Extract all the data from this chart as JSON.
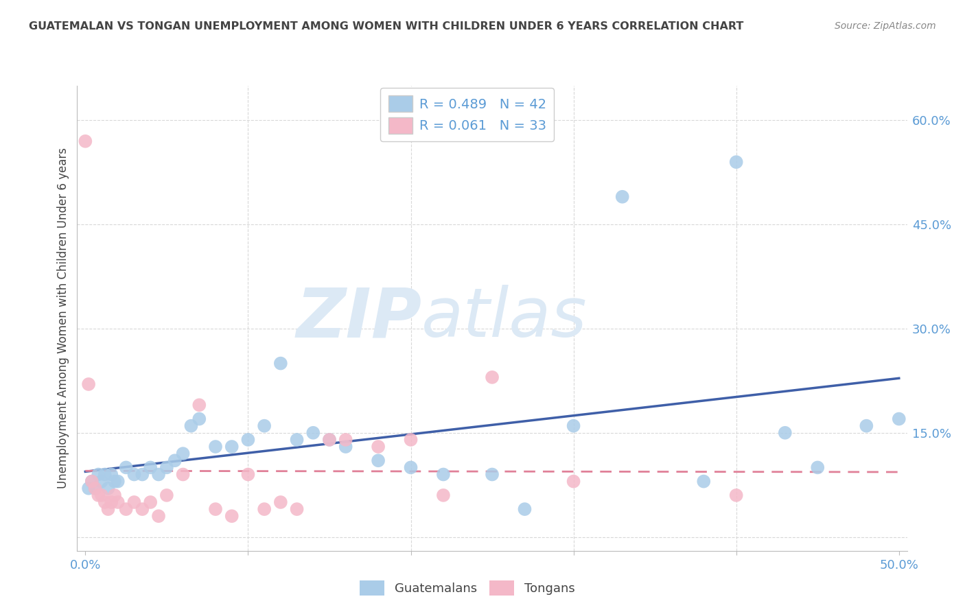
{
  "title": "GUATEMALAN VS TONGAN UNEMPLOYMENT AMONG WOMEN WITH CHILDREN UNDER 6 YEARS CORRELATION CHART",
  "source": "Source: ZipAtlas.com",
  "ylabel": "Unemployment Among Women with Children Under 6 years",
  "xlabel": "",
  "xlim": [
    -0.005,
    0.505
  ],
  "ylim": [
    -0.02,
    0.65
  ],
  "xticks": [
    0.0,
    0.1,
    0.2,
    0.3,
    0.4,
    0.5
  ],
  "yticks_right": [
    0.0,
    0.15,
    0.3,
    0.45,
    0.6
  ],
  "ytick_labels_right": [
    "",
    "15.0%",
    "30.0%",
    "45.0%",
    "60.0%"
  ],
  "xtick_labels": [
    "0.0%",
    "",
    "",
    "",
    "",
    "50.0%"
  ],
  "background_color": "#ffffff",
  "grid_color": "#d8d8d8",
  "title_color": "#444444",
  "axis_color": "#5b9bd5",
  "watermark_zip": "ZIP",
  "watermark_atlas": "atlas",
  "watermark_color": "#dce9f5",
  "legend_R1": "R = 0.489",
  "legend_N1": "N = 42",
  "legend_R2": "R = 0.061",
  "legend_N2": "N = 33",
  "legend_color1": "#aacce8",
  "legend_color2": "#f4b8c8",
  "guatemalan_color": "#aacce8",
  "tongan_color": "#f4b8c8",
  "line_color_blue": "#3f5fa8",
  "line_color_pink": "#e08098",
  "guatemalan_x": [
    0.002,
    0.004,
    0.006,
    0.008,
    0.01,
    0.012,
    0.014,
    0.016,
    0.018,
    0.02,
    0.025,
    0.03,
    0.035,
    0.04,
    0.045,
    0.05,
    0.055,
    0.06,
    0.065,
    0.07,
    0.08,
    0.09,
    0.1,
    0.11,
    0.12,
    0.13,
    0.14,
    0.15,
    0.16,
    0.18,
    0.2,
    0.22,
    0.25,
    0.27,
    0.3,
    0.33,
    0.38,
    0.4,
    0.43,
    0.45,
    0.48,
    0.5
  ],
  "guatemalan_y": [
    0.07,
    0.08,
    0.07,
    0.09,
    0.08,
    0.09,
    0.07,
    0.09,
    0.08,
    0.08,
    0.1,
    0.09,
    0.09,
    0.1,
    0.09,
    0.1,
    0.11,
    0.12,
    0.16,
    0.17,
    0.13,
    0.13,
    0.14,
    0.16,
    0.25,
    0.14,
    0.15,
    0.14,
    0.13,
    0.11,
    0.1,
    0.09,
    0.09,
    0.04,
    0.16,
    0.49,
    0.08,
    0.54,
    0.15,
    0.1,
    0.16,
    0.17
  ],
  "tongan_x": [
    0.0,
    0.002,
    0.004,
    0.006,
    0.008,
    0.01,
    0.012,
    0.014,
    0.016,
    0.018,
    0.02,
    0.025,
    0.03,
    0.035,
    0.04,
    0.045,
    0.05,
    0.06,
    0.07,
    0.08,
    0.09,
    0.1,
    0.11,
    0.12,
    0.13,
    0.15,
    0.16,
    0.18,
    0.2,
    0.22,
    0.25,
    0.3,
    0.4
  ],
  "tongan_y": [
    0.57,
    0.22,
    0.08,
    0.07,
    0.06,
    0.06,
    0.05,
    0.04,
    0.05,
    0.06,
    0.05,
    0.04,
    0.05,
    0.04,
    0.05,
    0.03,
    0.06,
    0.09,
    0.19,
    0.04,
    0.03,
    0.09,
    0.04,
    0.05,
    0.04,
    0.14,
    0.14,
    0.13,
    0.14,
    0.06,
    0.23,
    0.08,
    0.06
  ]
}
